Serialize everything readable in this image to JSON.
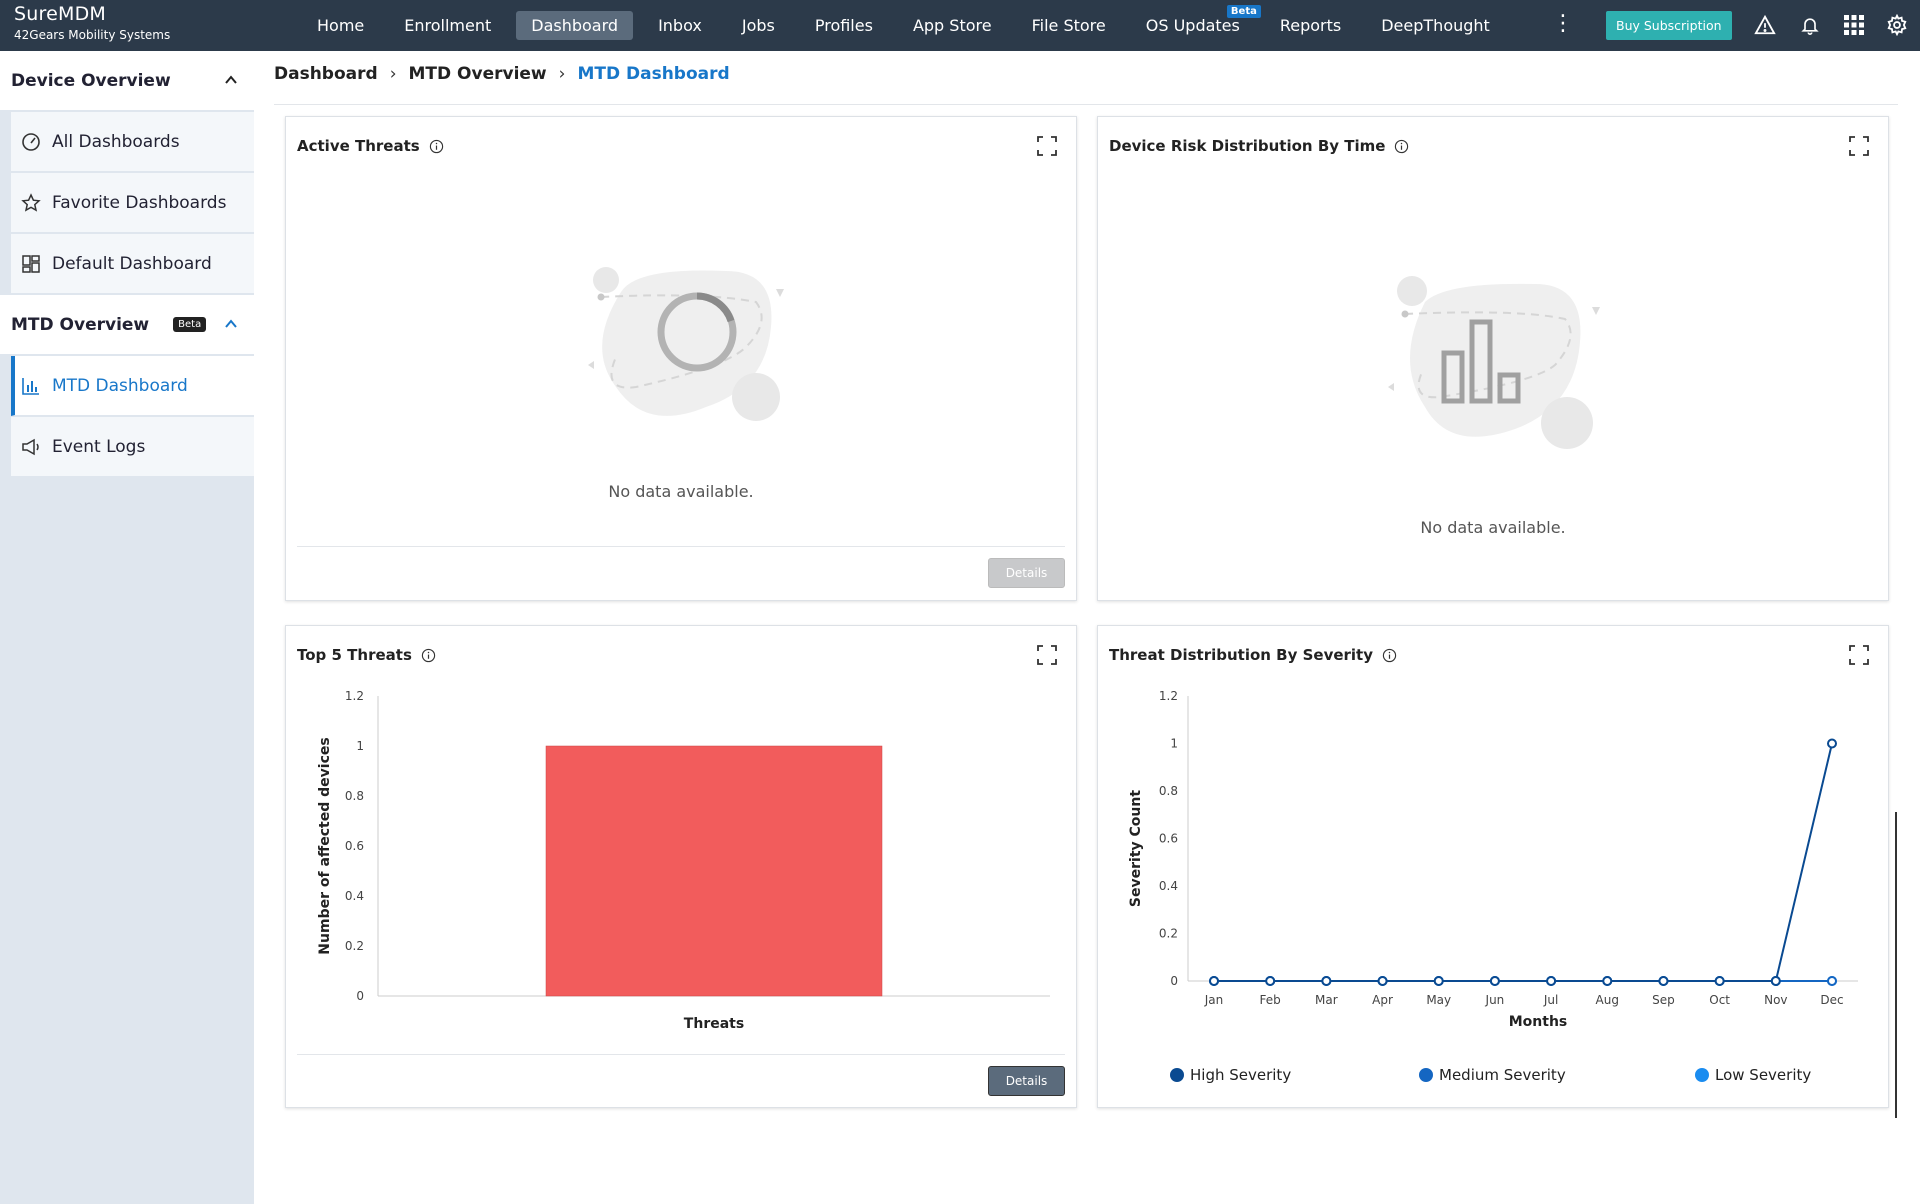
{
  "app": {
    "name": "SureMDM",
    "company": "42Gears Mobility Systems"
  },
  "nav": {
    "items": [
      {
        "label": "Home",
        "active": false
      },
      {
        "label": "Enrollment",
        "active": false
      },
      {
        "label": "Dashboard",
        "active": true
      },
      {
        "label": "Inbox",
        "active": false
      },
      {
        "label": "Jobs",
        "active": false
      },
      {
        "label": "Profiles",
        "active": false
      },
      {
        "label": "App Store",
        "active": false
      },
      {
        "label": "File Store",
        "active": false
      },
      {
        "label": "OS Updates",
        "active": false,
        "badge": "Beta"
      },
      {
        "label": "Reports",
        "active": false
      },
      {
        "label": "DeepThought",
        "active": false
      }
    ],
    "more_icon": "more-vertical-icon",
    "buy_label": "Buy Subscription",
    "icons": [
      "warning-icon",
      "bell-icon",
      "apps-grid-icon",
      "gear-icon"
    ]
  },
  "sidebar": {
    "device_overview": {
      "label": "Device Overview",
      "expanded": true
    },
    "device_items": [
      {
        "label": "All Dashboards",
        "icon": "gauge-icon"
      },
      {
        "label": "Favorite Dashboards",
        "icon": "star-icon"
      },
      {
        "label": "Default Dashboard",
        "icon": "layout-icon"
      }
    ],
    "mtd_overview": {
      "label": "MTD Overview",
      "badge": "Beta",
      "expanded": true
    },
    "mtd_items": [
      {
        "label": "MTD Dashboard",
        "icon": "bar-chart-icon",
        "active": true
      },
      {
        "label": "Event Logs",
        "icon": "megaphone-icon",
        "active": false
      }
    ]
  },
  "breadcrumb": [
    "Dashboard",
    "MTD Overview",
    "MTD Dashboard"
  ],
  "cards": {
    "active_threats": {
      "title": "Active Threats",
      "empty_text": "No data available.",
      "details_label": "Details"
    },
    "device_risk": {
      "title": "Device Risk Distribution By Time",
      "empty_text": "No data available."
    },
    "top_threats": {
      "title": "Top 5 Threats",
      "details_label": "Details"
    },
    "severity": {
      "title": "Threat Distribution By Severity"
    }
  },
  "chart_data": [
    {
      "type": "bar",
      "categories": [
        ""
      ],
      "values": [
        1
      ],
      "xlabel": "Threats",
      "ylabel": "Number of affected devices",
      "ylim": [
        0,
        1.2
      ],
      "yticks": [
        "0",
        "0.2",
        "0.4",
        "0.6",
        "0.8",
        "1",
        "1.2"
      ],
      "colors": [
        "#f25c5c"
      ]
    },
    {
      "type": "line",
      "x": [
        "Jan",
        "Feb",
        "Mar",
        "Apr",
        "May",
        "Jun",
        "Jul",
        "Aug",
        "Sep",
        "Oct",
        "Nov",
        "Dec"
      ],
      "xlabel": "Months",
      "ylabel": "Severity Count",
      "ylim": [
        0,
        1.2
      ],
      "yticks": [
        "0",
        "0.2",
        "0.4",
        "0.6",
        "0.8",
        "1",
        "1.2"
      ],
      "series": [
        {
          "name": "High Severity",
          "color": "#0a4a91",
          "values": [
            0,
            0,
            0,
            0,
            0,
            0,
            0,
            0,
            0,
            0,
            0,
            1
          ]
        },
        {
          "name": "Medium Severity",
          "color": "#1466c2",
          "values": [
            0,
            0,
            0,
            0,
            0,
            0,
            0,
            0,
            0,
            0,
            0,
            0
          ]
        },
        {
          "name": "Low Severity",
          "color": "#1a8cf0",
          "values": [
            0,
            0,
            0,
            0,
            0,
            0,
            0,
            0,
            0,
            0,
            0,
            0
          ]
        }
      ],
      "legend_position": "bottom"
    }
  ]
}
